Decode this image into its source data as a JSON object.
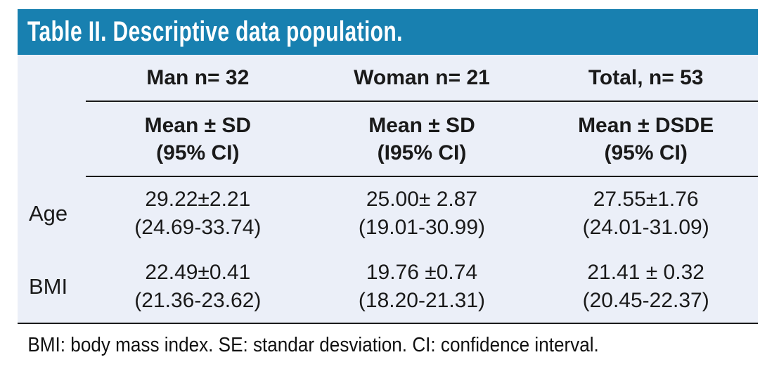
{
  "title": "Table II. Descriptive data population.",
  "table": {
    "columns": [
      "Man n= 32",
      "Woman n= 21",
      "Total, n= 53"
    ],
    "subheaders": [
      {
        "line1": "Mean ± SD",
        "line2": "(95% CI)"
      },
      {
        "line1": "Mean ± SD",
        "line2": "(I95% CI)"
      },
      {
        "line1": "Mean ± DSDE",
        "line2": "(95% CI)"
      }
    ],
    "rows": [
      {
        "label": "Age",
        "cells": [
          {
            "mean": "29.22±2.21",
            "ci": "(24.69-33.74)"
          },
          {
            "mean": "25.00± 2.87",
            "ci": "(19.01-30.99)"
          },
          {
            "mean": "27.55±1.76",
            "ci": "(24.01-31.09)"
          }
        ]
      },
      {
        "label": "BMI",
        "cells": [
          {
            "mean": "22.49±0.41",
            "ci": "(21.36-23.62)"
          },
          {
            "mean": "19.76 ±0.74",
            "ci": "(18.20-21.31)"
          },
          {
            "mean": "21.41 ± 0.32",
            "ci": "(20.45-22.37)"
          }
        ]
      }
    ]
  },
  "footnote": "BMI: body mass index. SE: standar desviation. CI: confidence interval.",
  "colors": {
    "header_bg": "#1880b0",
    "body_bg": "#ebeff8",
    "title_text": "#ffffff",
    "text": "#1a1a1a",
    "rule": "#1a1a1a"
  }
}
